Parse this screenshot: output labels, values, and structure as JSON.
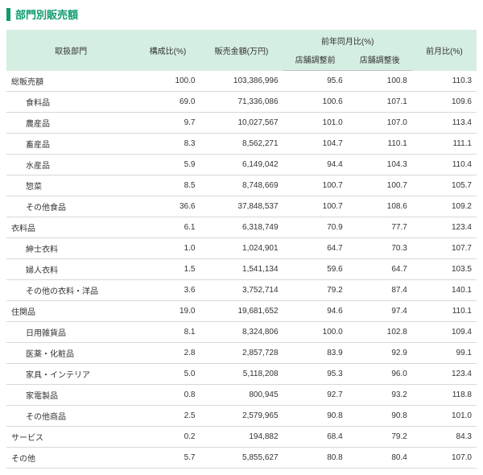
{
  "title": "部門別販売額",
  "colors": {
    "accent": "#0f9b6f",
    "header_bg": "#d5eee2",
    "border": "#d8d8d8",
    "text": "#333333"
  },
  "columns": {
    "dept": "取扱部門",
    "ratio": "構成比(%)",
    "sales": "販売金額(万円)",
    "yoy_group": "前年同月比(%)",
    "yoy_before": "店舗調整前",
    "yoy_after": "店舗調整後",
    "mom": "前月比(%)"
  },
  "rows": [
    {
      "label": "総販売額",
      "indent": false,
      "ratio": "100.0",
      "sales": "103,386,996",
      "yoy_b": "95.6",
      "yoy_a": "100.8",
      "mom": "110.3"
    },
    {
      "label": "食料品",
      "indent": true,
      "ratio": "69.0",
      "sales": "71,336,086",
      "yoy_b": "100.6",
      "yoy_a": "107.1",
      "mom": "109.6"
    },
    {
      "label": "農産品",
      "indent": true,
      "ratio": "9.7",
      "sales": "10,027,567",
      "yoy_b": "101.0",
      "yoy_a": "107.0",
      "mom": "113.4"
    },
    {
      "label": "畜産品",
      "indent": true,
      "ratio": "8.3",
      "sales": "8,562,271",
      "yoy_b": "104.7",
      "yoy_a": "110.1",
      "mom": "111.1"
    },
    {
      "label": "水産品",
      "indent": true,
      "ratio": "5.9",
      "sales": "6,149,042",
      "yoy_b": "94.4",
      "yoy_a": "104.3",
      "mom": "110.4"
    },
    {
      "label": "惣菜",
      "indent": true,
      "ratio": "8.5",
      "sales": "8,748,669",
      "yoy_b": "100.7",
      "yoy_a": "100.7",
      "mom": "105.7"
    },
    {
      "label": "その他食品",
      "indent": true,
      "ratio": "36.6",
      "sales": "37,848,537",
      "yoy_b": "100.7",
      "yoy_a": "108.6",
      "mom": "109.2"
    },
    {
      "label": "衣料品",
      "indent": false,
      "ratio": "6.1",
      "sales": "6,318,749",
      "yoy_b": "70.9",
      "yoy_a": "77.7",
      "mom": "123.4"
    },
    {
      "label": "紳士衣料",
      "indent": true,
      "ratio": "1.0",
      "sales": "1,024,901",
      "yoy_b": "64.7",
      "yoy_a": "70.3",
      "mom": "107.7"
    },
    {
      "label": "婦人衣料",
      "indent": true,
      "ratio": "1.5",
      "sales": "1,541,134",
      "yoy_b": "59.6",
      "yoy_a": "64.7",
      "mom": "103.5"
    },
    {
      "label": "その他の衣料・洋品",
      "indent": true,
      "ratio": "3.6",
      "sales": "3,752,714",
      "yoy_b": "79.2",
      "yoy_a": "87.4",
      "mom": "140.1"
    },
    {
      "label": "住関品",
      "indent": false,
      "ratio": "19.0",
      "sales": "19,681,652",
      "yoy_b": "94.6",
      "yoy_a": "97.4",
      "mom": "110.1"
    },
    {
      "label": "日用雑貨品",
      "indent": true,
      "ratio": "8.1",
      "sales": "8,324,806",
      "yoy_b": "100.0",
      "yoy_a": "102.8",
      "mom": "109.4"
    },
    {
      "label": "医薬・化粧品",
      "indent": true,
      "ratio": "2.8",
      "sales": "2,857,728",
      "yoy_b": "83.9",
      "yoy_a": "92.9",
      "mom": "99.1"
    },
    {
      "label": "家具・インテリア",
      "indent": true,
      "ratio": "5.0",
      "sales": "5,118,208",
      "yoy_b": "95.3",
      "yoy_a": "96.0",
      "mom": "123.4"
    },
    {
      "label": "家電製品",
      "indent": true,
      "ratio": "0.8",
      "sales": "800,945",
      "yoy_b": "92.7",
      "yoy_a": "93.2",
      "mom": "118.8"
    },
    {
      "label": "その他商品",
      "indent": true,
      "ratio": "2.5",
      "sales": "2,579,965",
      "yoy_b": "90.8",
      "yoy_a": "90.8",
      "mom": "101.0"
    },
    {
      "label": "サービス",
      "indent": false,
      "ratio": "0.2",
      "sales": "194,882",
      "yoy_b": "68.4",
      "yoy_a": "79.2",
      "mom": "84.3"
    },
    {
      "label": "その他",
      "indent": false,
      "ratio": "5.7",
      "sales": "5,855,627",
      "yoy_b": "80.8",
      "yoy_a": "80.4",
      "mom": "107.0"
    }
  ]
}
